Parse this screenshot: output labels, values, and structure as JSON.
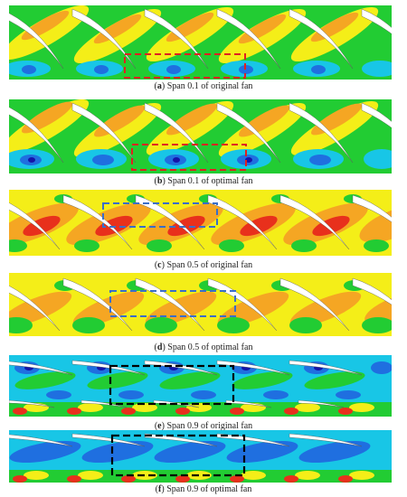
{
  "colors": {
    "green": "#22cc33",
    "yellow": "#f4ee18",
    "orange": "#f5a623",
    "red": "#e8301c",
    "cyan": "#18c6e6",
    "blue": "#1f6fe0",
    "navy": "#1414a8",
    "blade": "#ffffff",
    "red_box": "#e02020",
    "blue_box": "#3a6ec8",
    "black_box": "#000000"
  },
  "panels": [
    {
      "letter": "a",
      "caption": "Span 0.1 of original fan",
      "palette": "low_span",
      "box_color": "red"
    },
    {
      "letter": "b",
      "caption": "Span 0.1 of optimal fan",
      "palette": "low_span",
      "box_color": "red"
    },
    {
      "letter": "c",
      "caption": "Span 0.5 of original fan",
      "palette": "mid_span",
      "box_color": "blue"
    },
    {
      "letter": "d",
      "caption": "Span 0.5 of optimal fan",
      "palette": "mid_span",
      "box_color": "blue"
    },
    {
      "letter": "e",
      "caption": "Span 0.9 of original fan",
      "palette": "tip_span",
      "box_color": "black"
    },
    {
      "letter": "f",
      "caption": "Span 0.9 of optimal fan",
      "palette": "tip_span",
      "box_color": "black"
    }
  ]
}
